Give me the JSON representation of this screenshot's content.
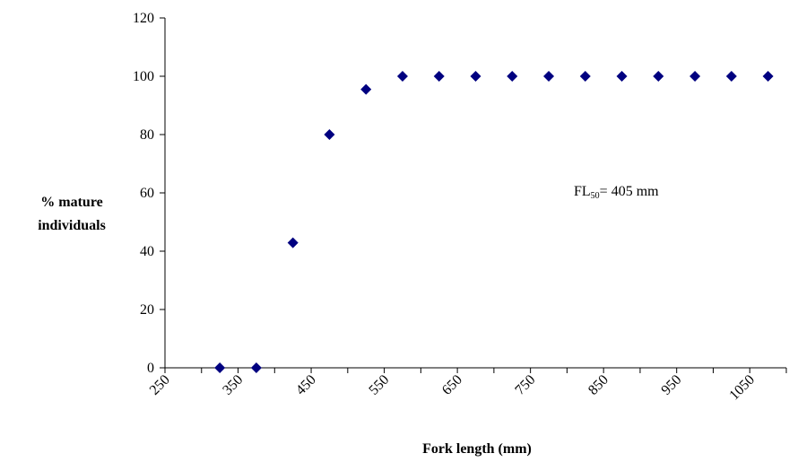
{
  "chart_data": {
    "type": "scatter",
    "xlabel": "Fork length (mm)",
    "ylabel_lines": [
      "% mature",
      "individuals"
    ],
    "xlim": [
      250,
      1100
    ],
    "ylim": [
      0,
      120
    ],
    "x_ticks": [
      "250",
      "350",
      "450",
      "550",
      "650",
      "750",
      "850",
      "950",
      "1050"
    ],
    "y_ticks": [
      "0",
      "20",
      "40",
      "60",
      "80",
      "100",
      "120"
    ],
    "grid": false,
    "series": [
      {
        "color": "#000080",
        "marker": "diamond",
        "points": [
          {
            "x": 325,
            "y": 0
          },
          {
            "x": 375,
            "y": 0
          },
          {
            "x": 425,
            "y": 42.9
          },
          {
            "x": 475,
            "y": 80
          },
          {
            "x": 525,
            "y": 95.5
          },
          {
            "x": 575,
            "y": 100
          },
          {
            "x": 625,
            "y": 100
          },
          {
            "x": 675,
            "y": 100
          },
          {
            "x": 725,
            "y": 100
          },
          {
            "x": 775,
            "y": 100
          },
          {
            "x": 825,
            "y": 100
          },
          {
            "x": 875,
            "y": 100
          },
          {
            "x": 925,
            "y": 100
          },
          {
            "x": 975,
            "y": 100
          },
          {
            "x": 1025,
            "y": 100
          },
          {
            "x": 1075,
            "y": 100
          }
        ]
      }
    ],
    "annotation": {
      "main": "FL",
      "subscript": "50",
      "rest": "= 405 mm"
    }
  }
}
